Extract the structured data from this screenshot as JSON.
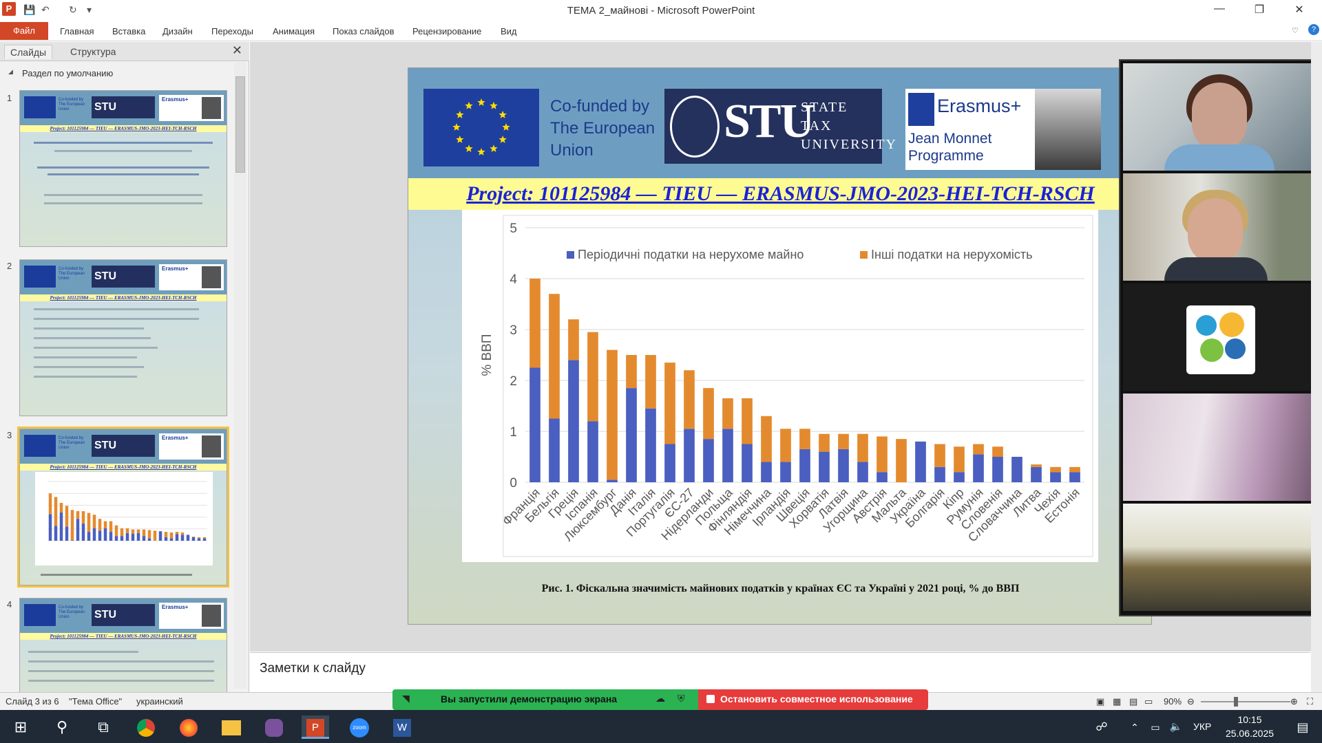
{
  "window": {
    "title": "ТЕМА 2_майнові  -  Microsoft PowerPoint",
    "app_icon": "P",
    "controls": {
      "minimize": "—",
      "restore": "❐",
      "close": "✕"
    }
  },
  "ribbon": {
    "file_tab": "Файл",
    "tabs": [
      "Главная",
      "Вставка",
      "Дизайн",
      "Переходы",
      "Анимация",
      "Показ слайдов",
      "Рецензирование",
      "Вид"
    ]
  },
  "left_pane": {
    "tabs": [
      "Слайды",
      "Структура"
    ],
    "section": "Раздел по умолчанию",
    "thumbnails": [
      {
        "num": "1",
        "project": "Project: 101125984 — TIEU — ERASMUS-JMO-2023-HEI-TCH-RSCH"
      },
      {
        "num": "2",
        "project": "Project: 101125984 — TIEU — ERASMUS-JMO-2023-HEI-TCH-RSCH"
      },
      {
        "num": "3",
        "project": "Project: 101125984 — TIEU — ERASMUS-JMO-2023-HEI-TCH-RSCH"
      },
      {
        "num": "4",
        "project": "Project: 101125984 — TIEU — ERASMUS-JMO-2023-HEI-TCH-RSCH"
      }
    ]
  },
  "slide": {
    "cofunded": [
      "Co-funded by",
      "The European",
      "Union"
    ],
    "stu": {
      "logo": "STU",
      "lines": [
        "STATE",
        "TAX",
        "UNIVERSITY"
      ]
    },
    "erasmus": {
      "title": "Erasmus+",
      "lines": [
        "Jean Monnet",
        "Programme"
      ]
    },
    "project": "Project: 101125984 — TIEU — ERASMUS-JMO-2023-HEI-TCH-RSCH",
    "caption": "Рис. 1. Фіскальна значимість майнових податків у країнах ЄС та Україні у 2021 році, % до ВВП"
  },
  "chart_data": {
    "type": "bar",
    "stacked": true,
    "title": "",
    "xlabel": "",
    "ylabel": "% ВВП",
    "ylim": [
      0,
      5
    ],
    "yticks": [
      0,
      1,
      2,
      3,
      4,
      5
    ],
    "legend_position": "top",
    "categories": [
      "Франція",
      "Бельгія",
      "Греція",
      "Іспанія",
      "Люксембург",
      "Данія",
      "Італія",
      "Португалія",
      "ЄС-27",
      "Нідерланди",
      "Польща",
      "Фінляндія",
      "Німеччина",
      "Ірландія",
      "Швеція",
      "Хорватія",
      "Латвія",
      "Угорщина",
      "Австрія",
      "Мальта",
      "Україна",
      "Болгарія",
      "Кіпр",
      "Румунія",
      "Словенія",
      "Словаччина",
      "Литва",
      "Чехія",
      "Естонія"
    ],
    "series": [
      {
        "name": "Періодичні податки на нерухоме майно",
        "color": "#4a5fbf",
        "values": [
          2.25,
          1.25,
          2.4,
          1.2,
          0.05,
          1.85,
          1.45,
          0.75,
          1.05,
          0.85,
          1.05,
          0.75,
          0.4,
          0.4,
          0.65,
          0.6,
          0.65,
          0.4,
          0.2,
          0.0,
          0.8,
          0.3,
          0.2,
          0.55,
          0.5,
          0.5,
          0.3,
          0.2,
          0.2
        ]
      },
      {
        "name": "Інші податки на нерухомість",
        "color": "#e48a2e",
        "values": [
          1.75,
          2.45,
          0.8,
          1.75,
          2.55,
          0.65,
          1.05,
          1.6,
          1.15,
          1.0,
          0.6,
          0.9,
          0.9,
          0.65,
          0.4,
          0.35,
          0.3,
          0.55,
          0.7,
          0.85,
          0.0,
          0.45,
          0.5,
          0.2,
          0.2,
          0.0,
          0.05,
          0.1,
          0.1
        ]
      }
    ],
    "gridlines": true
  },
  "notes": {
    "placeholder": "Заметки к слайду"
  },
  "status": {
    "slide": "Слайд 3 из 6",
    "theme": "\"Тема Office\"",
    "lang": "украинский",
    "zoom": "90%"
  },
  "share": {
    "sharing": "Вы запустили демонстрацию экрана",
    "stop": "Остановить совместное использование"
  },
  "taskbar": {
    "lang": "УКР",
    "time": "10:15",
    "date": "25.06.2025"
  },
  "colors": {
    "accent": "#d24726",
    "project_text": "#1a23d6",
    "share_green": "#2bb253",
    "share_red": "#e63c3c"
  }
}
